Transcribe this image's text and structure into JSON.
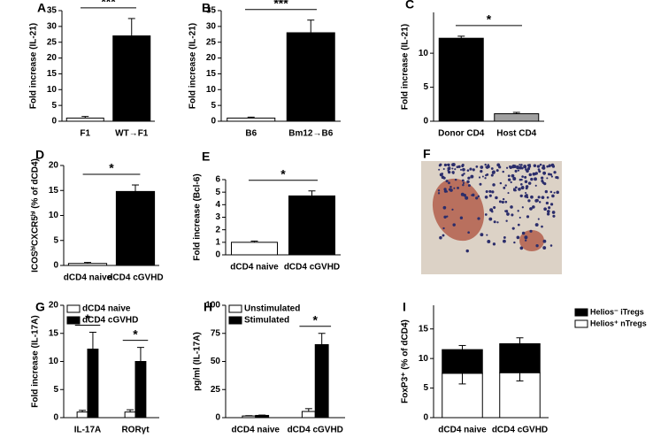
{
  "chart_data": [
    {
      "type": "bar",
      "label": "A",
      "ylabel": "Fold increase (IL-21)",
      "categories": [
        "F1",
        "WT→F1"
      ],
      "values": [
        1,
        27
      ],
      "errors": [
        0.5,
        5.5
      ],
      "colors": [
        "#ffffff",
        "#000000"
      ],
      "ylim": [
        0,
        35
      ],
      "yticks": [
        0,
        5,
        10,
        15,
        20,
        25,
        30,
        35
      ],
      "significance": [
        "***"
      ]
    },
    {
      "type": "bar",
      "label": "B",
      "ylabel": "Fold increase (IL-21)",
      "categories": [
        "B6",
        "Bm12→B6"
      ],
      "values": [
        1,
        28
      ],
      "errors": [
        0.3,
        4
      ],
      "colors": [
        "#ffffff",
        "#000000"
      ],
      "ylim": [
        0,
        35
      ],
      "yticks": [
        0,
        5,
        10,
        15,
        20,
        25,
        30,
        35
      ],
      "significance": [
        "***"
      ]
    },
    {
      "type": "bar",
      "label": "C",
      "ylabel": "Fold increase (IL-21)",
      "categories": [
        "Donor CD4",
        "Host CD4"
      ],
      "values": [
        12.2,
        1.1
      ],
      "errors": [
        0.3,
        0.2
      ],
      "colors": [
        "#000000",
        "#a0a0a0"
      ],
      "ylim": [
        0,
        16
      ],
      "yticks": [
        0,
        5,
        10
      ],
      "significance": [
        "*"
      ]
    },
    {
      "type": "bar",
      "label": "D",
      "ylabel": "ICOSʰⁱCXCR5ʰⁱ (% of dCD4)",
      "categories": [
        "dCD4 naive",
        "dCD4 cGVHD"
      ],
      "values": [
        0.4,
        14.8
      ],
      "errors": [
        0.2,
        1.3
      ],
      "colors": [
        "#ffffff",
        "#000000"
      ],
      "ylim": [
        0,
        20
      ],
      "yticks": [
        0,
        5,
        10,
        15,
        20
      ],
      "significance": [
        "*"
      ]
    },
    {
      "type": "bar",
      "label": "E",
      "ylabel": "Fold increase (Bcl-6)",
      "categories": [
        "dCD4 naive",
        "dCD4 cGVHD"
      ],
      "values": [
        1.0,
        4.7
      ],
      "errors": [
        0.1,
        0.4
      ],
      "colors": [
        "#ffffff",
        "#000000"
      ],
      "ylim": [
        0,
        6
      ],
      "yticks": [
        0,
        1,
        2,
        3,
        4,
        5,
        6
      ],
      "significance": [
        "*"
      ]
    },
    {
      "type": "image",
      "label": "F"
    },
    {
      "type": "grouped_bar",
      "label": "G",
      "ylabel": "Fold increase (IL-17A)",
      "categories": [
        "IL-17A",
        "RORγt"
      ],
      "series": [
        {
          "name": "dCD4 naive",
          "color": "#ffffff",
          "values": [
            1.0,
            1.0
          ],
          "errors": [
            0.3,
            0.4
          ]
        },
        {
          "name": "dCD4 cGVHD",
          "color": "#000000",
          "values": [
            12.2,
            10
          ],
          "errors": [
            3,
            2.5
          ]
        }
      ],
      "ylim": [
        0,
        20
      ],
      "yticks": [
        0,
        5,
        10,
        15,
        20
      ],
      "significance": [
        "*",
        "*"
      ],
      "legend": "upper left"
    },
    {
      "type": "grouped_bar",
      "label": "H",
      "ylabel": "pg/ml (IL-17A)",
      "categories": [
        "dCD4 naive",
        "dCD4 cGVHD"
      ],
      "series": [
        {
          "name": "Unstimulated",
          "color": "#ffffff",
          "values": [
            1.5,
            5.5
          ],
          "errors": [
            0.3,
            2.5
          ]
        },
        {
          "name": "Stimulated",
          "color": "#000000",
          "values": [
            2,
            65
          ],
          "errors": [
            0.3,
            10
          ]
        }
      ],
      "ylim": [
        0,
        100
      ],
      "yticks": [
        0,
        25,
        50,
        75,
        100
      ],
      "significance": [
        null,
        "*"
      ],
      "legend": "upper left"
    },
    {
      "type": "stacked_bar",
      "label": "I",
      "ylabel": "FoxP3⁺ (% of dCD4)",
      "categories": [
        "dCD4 naive",
        "dCD4 cGVHD"
      ],
      "series": [
        {
          "name": "Helios⁺ nTregs",
          "color": "#ffffff",
          "values": [
            7.5,
            7.6
          ],
          "errors": [
            1.8,
            1.4
          ]
        },
        {
          "name": "Helios⁻ iTregs",
          "color": "#000000",
          "values": [
            4.0,
            4.9
          ],
          "errors": [
            0.7,
            1.0
          ]
        }
      ],
      "ylim": [
        0,
        19
      ],
      "yticks": [
        0,
        5,
        10,
        15
      ],
      "legend": "outside right"
    }
  ]
}
